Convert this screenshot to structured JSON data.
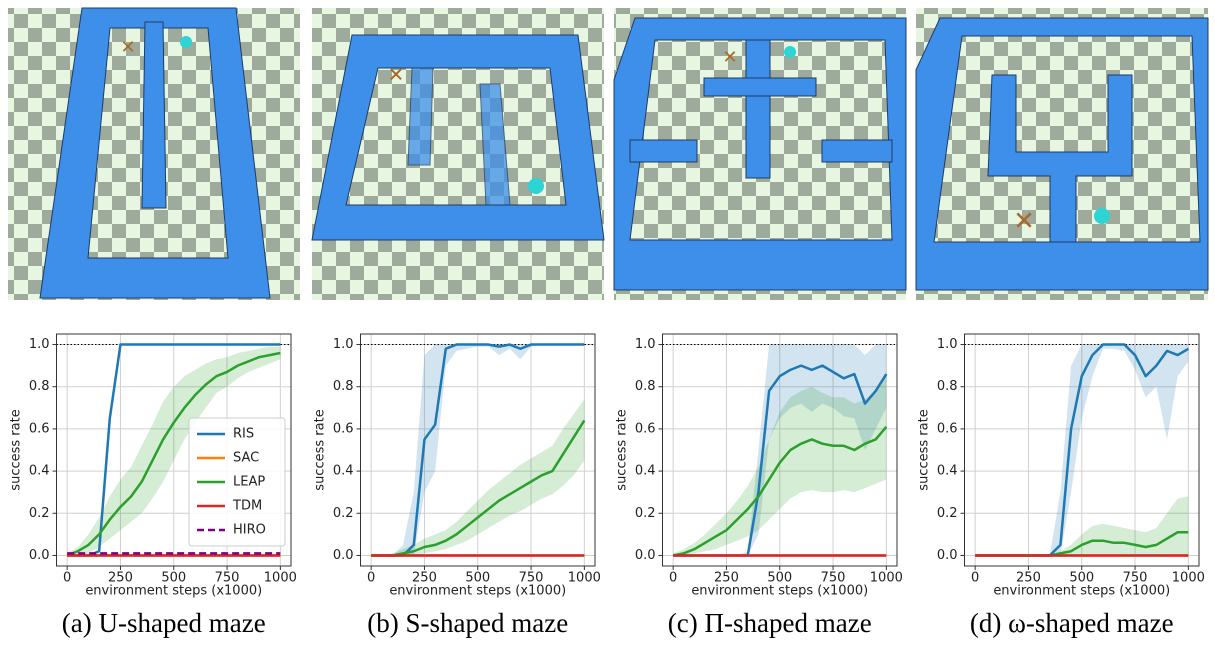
{
  "chart_data": [
    {
      "type": "line",
      "caption": "(a) U-shaped maze",
      "xlabel": "environment steps (x1000)",
      "ylabel": "success rate",
      "x": [
        0,
        50,
        100,
        150,
        200,
        250,
        300,
        350,
        400,
        450,
        500,
        550,
        600,
        650,
        700,
        750,
        800,
        850,
        900,
        950,
        1000
      ],
      "xlim": [
        -50,
        1050
      ],
      "xticks": [
        0,
        250,
        500,
        750,
        1000
      ],
      "ylim": [
        -0.05,
        1.05
      ],
      "yticks": [
        {
          "value": 0,
          "label": "0.0"
        },
        {
          "value": 0.2,
          "label": "0.2"
        },
        {
          "value": 0.4,
          "label": "0.4"
        },
        {
          "value": 0.6,
          "label": "0.6"
        },
        {
          "value": 0.8,
          "label": "0.8"
        },
        {
          "value": 1,
          "label": "1.0"
        }
      ],
      "grid": true,
      "hline": 1,
      "legend": "lower right",
      "series": [
        {
          "name": "RIS",
          "color": "#1f77b4",
          "values": [
            0,
            0,
            0,
            0.02,
            0.65,
            1,
            1,
            1,
            1,
            1,
            1,
            1,
            1,
            1,
            1,
            1,
            1,
            1,
            1,
            1,
            1
          ]
        },
        {
          "name": "SAC",
          "color": "#ff7f0e",
          "values": [
            0,
            0,
            0,
            0,
            0,
            0,
            0,
            0,
            0,
            0,
            0,
            0,
            0,
            0,
            0,
            0,
            0,
            0,
            0,
            0,
            0
          ]
        },
        {
          "name": "LEAP",
          "color": "#2ca02c",
          "values": [
            0,
            0.02,
            0.05,
            0.1,
            0.17,
            0.23,
            0.28,
            0.35,
            0.45,
            0.55,
            0.63,
            0.7,
            0.76,
            0.81,
            0.85,
            0.87,
            0.9,
            0.92,
            0.94,
            0.95,
            0.96
          ],
          "lower": [
            0,
            0,
            0.01,
            0.04,
            0.08,
            0.12,
            0.16,
            0.2,
            0.27,
            0.35,
            0.45,
            0.55,
            0.63,
            0.7,
            0.77,
            0.8,
            0.84,
            0.87,
            0.89,
            0.91,
            0.93
          ],
          "upper": [
            0.01,
            0.04,
            0.1,
            0.18,
            0.28,
            0.36,
            0.42,
            0.52,
            0.62,
            0.73,
            0.8,
            0.85,
            0.88,
            0.91,
            0.93,
            0.94,
            0.96,
            0.97,
            0.98,
            0.99,
            0.99
          ]
        },
        {
          "name": "TDM",
          "color": "#d62728",
          "values": [
            0,
            0,
            0,
            0,
            0,
            0,
            0,
            0,
            0,
            0,
            0,
            0,
            0,
            0,
            0,
            0,
            0,
            0,
            0,
            0,
            0
          ]
        },
        {
          "name": "HIRO",
          "color": "#800080",
          "linestyle": "dashed",
          "values": [
            0.01,
            0.01,
            0.01,
            0.01,
            0.01,
            0.01,
            0.01,
            0.01,
            0.01,
            0.01,
            0.01,
            0.01,
            0.01,
            0.01,
            0.01,
            0.01,
            0.01,
            0.01,
            0.01,
            0.01,
            0.01
          ]
        }
      ]
    },
    {
      "type": "line",
      "caption": "(b) S-shaped maze",
      "xlabel": "environment steps (x1000)",
      "ylabel": "success rate",
      "x": [
        0,
        50,
        100,
        150,
        200,
        250,
        300,
        350,
        400,
        450,
        500,
        550,
        600,
        650,
        700,
        750,
        800,
        850,
        900,
        950,
        1000
      ],
      "xlim": [
        -50,
        1050
      ],
      "xticks": [
        0,
        250,
        500,
        750,
        1000
      ],
      "ylim": [
        -0.05,
        1.05
      ],
      "yticks": [
        {
          "value": 0,
          "label": "0.0"
        },
        {
          "value": 0.2,
          "label": "0.2"
        },
        {
          "value": 0.4,
          "label": "0.4"
        },
        {
          "value": 0.6,
          "label": "0.6"
        },
        {
          "value": 0.8,
          "label": "0.8"
        },
        {
          "value": 1,
          "label": "1.0"
        }
      ],
      "grid": true,
      "hline": 1,
      "series": [
        {
          "name": "RIS",
          "color": "#1f77b4",
          "values": [
            0,
            0,
            0,
            0,
            0.05,
            0.55,
            0.62,
            0.98,
            1,
            1,
            1,
            1,
            0.99,
            1,
            0.98,
            1,
            1,
            1,
            1,
            1,
            1
          ],
          "lower": [
            0,
            0,
            0,
            0,
            0,
            0.3,
            0.4,
            0.9,
            0.97,
            0.98,
            0.99,
            0.99,
            0.95,
            0.98,
            0.93,
            0.99,
            1,
            1,
            1,
            1,
            1
          ],
          "upper": [
            0,
            0,
            0,
            0.05,
            0.3,
            0.95,
            1,
            1,
            1,
            1,
            1,
            1,
            1,
            1,
            1,
            1,
            1,
            1,
            1,
            1,
            1
          ]
        },
        {
          "name": "SAC",
          "color": "#ff7f0e",
          "values": [
            0,
            0,
            0,
            0,
            0,
            0,
            0,
            0,
            0,
            0,
            0,
            0,
            0,
            0,
            0,
            0,
            0,
            0,
            0,
            0,
            0
          ]
        },
        {
          "name": "LEAP",
          "color": "#2ca02c",
          "values": [
            0,
            0,
            0,
            0.01,
            0.02,
            0.04,
            0.05,
            0.07,
            0.1,
            0.14,
            0.18,
            0.22,
            0.26,
            0.29,
            0.32,
            0.35,
            0.38,
            0.4,
            0.48,
            0.56,
            0.64
          ],
          "lower": [
            0,
            0,
            0,
            0,
            0,
            0.01,
            0.02,
            0.03,
            0.05,
            0.07,
            0.1,
            0.13,
            0.16,
            0.19,
            0.21,
            0.24,
            0.27,
            0.29,
            0.33,
            0.38,
            0.45
          ],
          "upper": [
            0,
            0,
            0.01,
            0.03,
            0.05,
            0.08,
            0.1,
            0.12,
            0.16,
            0.21,
            0.26,
            0.31,
            0.35,
            0.39,
            0.43,
            0.46,
            0.49,
            0.52,
            0.6,
            0.67,
            0.74
          ]
        },
        {
          "name": "TDM",
          "color": "#d62728",
          "values": [
            0,
            0,
            0,
            0,
            0,
            0,
            0,
            0,
            0,
            0,
            0,
            0,
            0,
            0,
            0,
            0,
            0,
            0,
            0,
            0,
            0
          ]
        }
      ]
    },
    {
      "type": "line",
      "caption": "(c) Π-shaped maze",
      "xlabel": "environment steps (x1000)",
      "ylabel": "success rate",
      "x": [
        0,
        50,
        100,
        150,
        200,
        250,
        300,
        350,
        400,
        450,
        500,
        550,
        600,
        650,
        700,
        750,
        800,
        850,
        900,
        950,
        1000
      ],
      "xlim": [
        -50,
        1050
      ],
      "xticks": [
        0,
        250,
        500,
        750,
        1000
      ],
      "ylim": [
        -0.05,
        1.05
      ],
      "yticks": [
        {
          "value": 0,
          "label": "0.0"
        },
        {
          "value": 0.2,
          "label": "0.2"
        },
        {
          "value": 0.4,
          "label": "0.4"
        },
        {
          "value": 0.6,
          "label": "0.6"
        },
        {
          "value": 0.8,
          "label": "0.8"
        },
        {
          "value": 1,
          "label": "1.0"
        }
      ],
      "grid": true,
      "hline": 1,
      "series": [
        {
          "name": "RIS",
          "color": "#1f77b4",
          "values": [
            0,
            0,
            0,
            0,
            0,
            0,
            0,
            0,
            0.3,
            0.78,
            0.85,
            0.88,
            0.9,
            0.88,
            0.9,
            0.87,
            0.84,
            0.86,
            0.72,
            0.78,
            0.86
          ],
          "lower": [
            0,
            0,
            0,
            0,
            0,
            0,
            0,
            0,
            0.1,
            0.55,
            0.65,
            0.7,
            0.72,
            0.68,
            0.72,
            0.7,
            0.66,
            0.65,
            0.5,
            0.6,
            0.7
          ],
          "upper": [
            0,
            0,
            0,
            0,
            0,
            0,
            0,
            0.02,
            0.5,
            1,
            1,
            1,
            1,
            1,
            1,
            1,
            1,
            1,
            0.95,
            1,
            1
          ]
        },
        {
          "name": "SAC",
          "color": "#ff7f0e",
          "values": [
            0,
            0,
            0,
            0,
            0,
            0,
            0,
            0,
            0,
            0,
            0,
            0,
            0,
            0,
            0,
            0,
            0,
            0,
            0,
            0,
            0
          ]
        },
        {
          "name": "LEAP",
          "color": "#2ca02c",
          "values": [
            0,
            0.01,
            0.03,
            0.06,
            0.09,
            0.12,
            0.17,
            0.22,
            0.28,
            0.36,
            0.44,
            0.5,
            0.53,
            0.55,
            0.53,
            0.52,
            0.52,
            0.5,
            0.53,
            0.55,
            0.61
          ],
          "lower": [
            0,
            0,
            0.01,
            0.02,
            0.03,
            0.05,
            0.07,
            0.09,
            0.12,
            0.17,
            0.22,
            0.27,
            0.3,
            0.31,
            0.3,
            0.3,
            0.31,
            0.3,
            0.32,
            0.34,
            0.36
          ],
          "upper": [
            0.01,
            0.03,
            0.06,
            0.1,
            0.15,
            0.2,
            0.26,
            0.33,
            0.42,
            0.55,
            0.68,
            0.75,
            0.78,
            0.8,
            0.77,
            0.75,
            0.75,
            0.72,
            0.74,
            0.78,
            0.85
          ]
        },
        {
          "name": "TDM",
          "color": "#d62728",
          "values": [
            0,
            0,
            0,
            0,
            0,
            0,
            0,
            0,
            0,
            0,
            0,
            0,
            0,
            0,
            0,
            0,
            0,
            0,
            0,
            0,
            0
          ]
        }
      ]
    },
    {
      "type": "line",
      "caption": "(d) ω-shaped maze",
      "xlabel": "environment steps (x1000)",
      "ylabel": "success rate",
      "x": [
        0,
        50,
        100,
        150,
        200,
        250,
        300,
        350,
        400,
        450,
        500,
        550,
        600,
        650,
        700,
        750,
        800,
        850,
        900,
        950,
        1000
      ],
      "xlim": [
        -50,
        1050
      ],
      "xticks": [
        0,
        250,
        500,
        750,
        1000
      ],
      "ylim": [
        -0.05,
        1.05
      ],
      "yticks": [
        {
          "value": 0,
          "label": "0.0"
        },
        {
          "value": 0.2,
          "label": "0.2"
        },
        {
          "value": 0.4,
          "label": "0.4"
        },
        {
          "value": 0.6,
          "label": "0.6"
        },
        {
          "value": 0.8,
          "label": "0.8"
        },
        {
          "value": 1,
          "label": "1.0"
        }
      ],
      "grid": true,
      "hline": 1,
      "series": [
        {
          "name": "RIS",
          "color": "#1f77b4",
          "values": [
            0,
            0,
            0,
            0,
            0,
            0,
            0,
            0,
            0.05,
            0.6,
            0.85,
            0.95,
            1,
            1,
            1,
            0.95,
            0.85,
            0.9,
            0.97,
            0.95,
            0.98
          ],
          "lower": [
            0,
            0,
            0,
            0,
            0,
            0,
            0,
            0,
            0,
            0.3,
            0.65,
            0.85,
            0.98,
            0.98,
            0.97,
            0.88,
            0.75,
            0.8,
            0.55,
            0.85,
            0.92
          ],
          "upper": [
            0,
            0,
            0,
            0,
            0,
            0,
            0,
            0,
            0.3,
            0.9,
            1,
            1,
            1,
            1,
            1,
            1,
            1,
            1,
            1,
            1,
            1
          ]
        },
        {
          "name": "SAC",
          "color": "#ff7f0e",
          "values": [
            0,
            0,
            0,
            0,
            0,
            0,
            0,
            0,
            0,
            0,
            0,
            0,
            0,
            0,
            0,
            0,
            0,
            0,
            0,
            0,
            0
          ]
        },
        {
          "name": "LEAP",
          "color": "#2ca02c",
          "values": [
            0,
            0,
            0,
            0,
            0,
            0,
            0,
            0,
            0.01,
            0.02,
            0.05,
            0.07,
            0.07,
            0.06,
            0.06,
            0.05,
            0.04,
            0.05,
            0.08,
            0.11,
            0.11
          ],
          "lower": [
            0,
            0,
            0,
            0,
            0,
            0,
            0,
            0,
            0,
            0,
            0,
            0,
            0,
            0,
            0,
            0,
            0,
            0,
            0,
            0,
            0
          ],
          "upper": [
            0,
            0,
            0,
            0,
            0,
            0,
            0,
            0,
            0.02,
            0.05,
            0.1,
            0.14,
            0.15,
            0.14,
            0.13,
            0.12,
            0.11,
            0.13,
            0.2,
            0.27,
            0.28
          ]
        },
        {
          "name": "TDM",
          "color": "#d62728",
          "values": [
            0,
            0,
            0,
            0,
            0,
            0,
            0,
            0,
            0,
            0,
            0,
            0,
            0,
            0,
            0,
            0,
            0,
            0,
            0,
            0,
            0
          ]
        }
      ]
    }
  ]
}
